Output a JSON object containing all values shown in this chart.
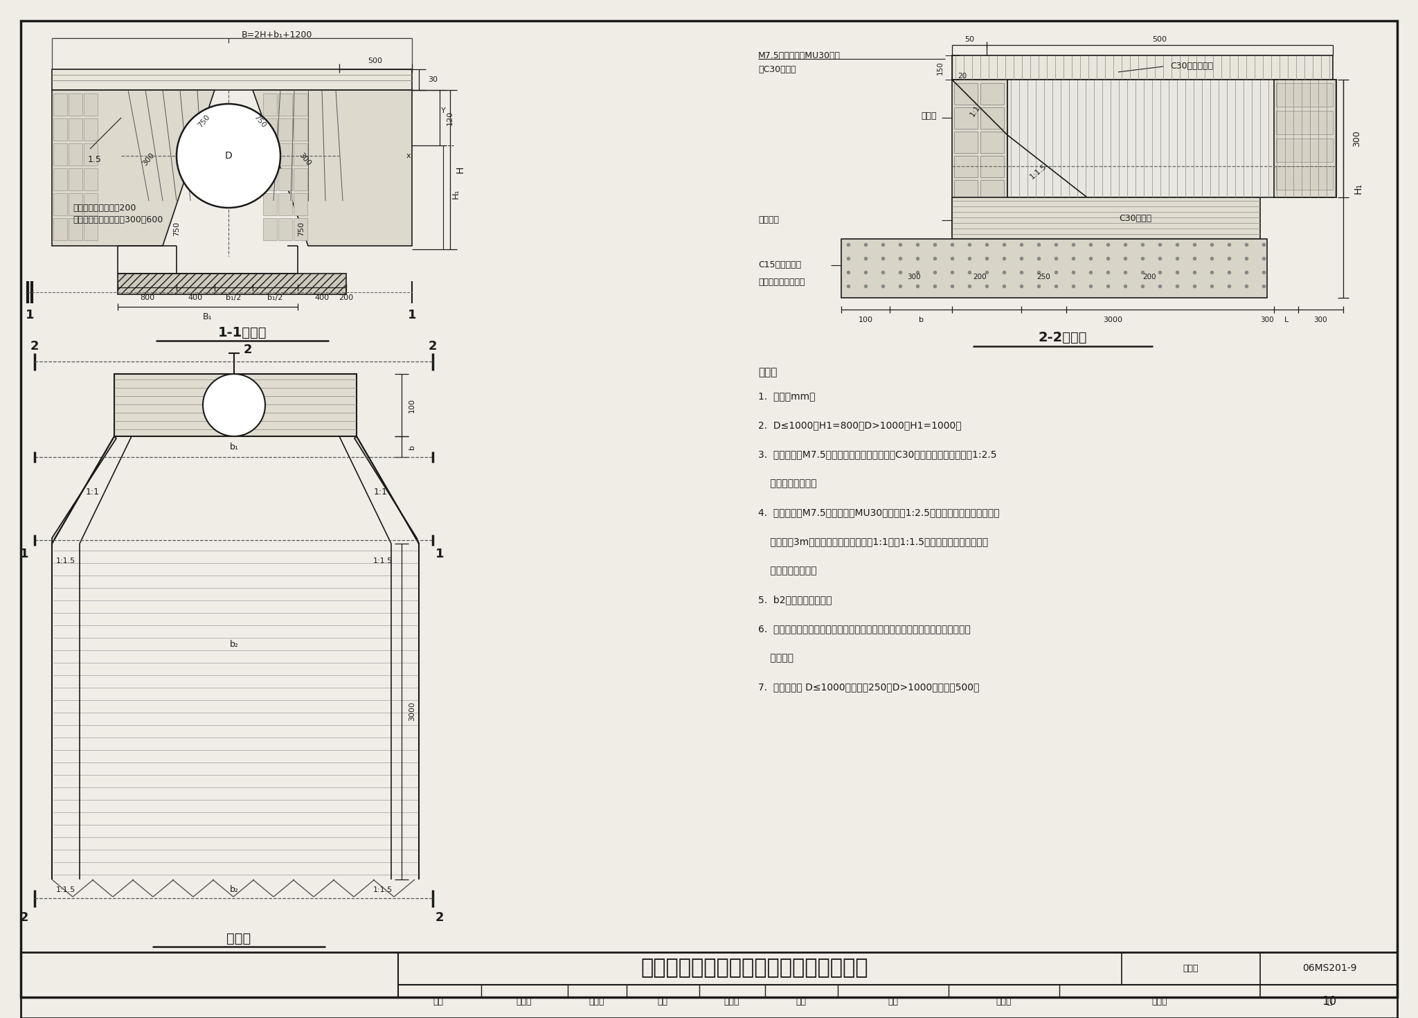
{
  "bg_color": "#f0ede6",
  "line_color": "#1a1a1a",
  "title": "一字式管道出水口（浆砂块石或混凝土）",
  "figure_number": "06MS201-9",
  "page": "10",
  "label_11": "1-1剑面图",
  "label_22": "2-2剑面图",
  "label_plan": "平面图",
  "note_title": "说明：",
  "notes": [
    "1.  单位：mm。",
    "2.  D≤1000，H1=800；D>1000，H1=1000。",
    "3.  一字翼墙用M7.5水泥砂浆砂块石（或翼墙用C30混凝土），外露部分用1:2.5",
    "    水泥砂浆勾平缝。",
    "4.  明渠护砲用M7.5水泥砂浆砂MU30块石，用1:2.5水泥砂浆勾平缝，从出口翼",
    "    墙处开始3m长度内为渐变段，边坡匚1:1变为1:1.5，如明渠为其他坡度时，",
    "    按明渠坡度渐变。",
    "5.  b2为下游明渠底宽。",
    "6.  翼墙斜坡衬砲及明渠衬砲背面的土壤必须夙实或采取其他措施，以防衬砲不均",
    "    匀下沉。",
    "7.  管顶石砂碍 D≤1000时，碍高250；D>1000时，碍高500。"
  ],
  "bottom_labels": [
    "审核",
    "王釶山",
    "校对",
    "盛奕节",
    "设计",
    "温丽晖",
    "页"
  ]
}
